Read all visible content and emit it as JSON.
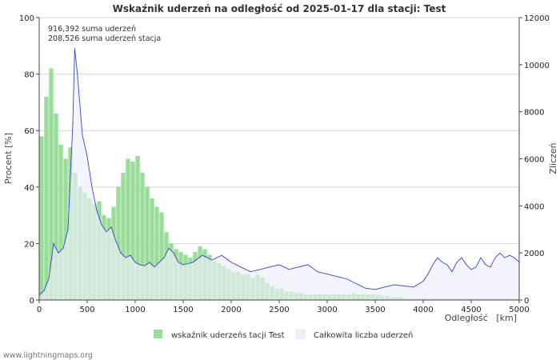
{
  "chart_data": {
    "type": "bar+area",
    "title": "Wskaźnik uderzeń na odległość od 2025-01-17 dla stacji: Test",
    "xlabel": "Odległość   [km]",
    "ylabel_left": "Procent   [%]",
    "ylabel_right": "Zliczeń",
    "xlim": [
      0,
      5000
    ],
    "ylim_left": [
      0,
      100
    ],
    "ylim_right": [
      0,
      12000
    ],
    "x_ticks": [
      "0",
      "500",
      "1000",
      "1500",
      "2000",
      "2500",
      "3000",
      "3500",
      "4000",
      "4500",
      "5000"
    ],
    "y_left_ticks": [
      "0",
      "20",
      "40",
      "60",
      "80",
      "100"
    ],
    "y_right_ticks": [
      "0",
      "2000",
      "4000",
      "6000",
      "8000",
      "10000",
      "12000"
    ],
    "annotations": [
      "916,392 suma uderzeń",
      "208,526 suma uderzeń stacja"
    ],
    "legend": [
      "wskaźnik uderzeńs tacji Test",
      "Całkowita liczba uderzeń"
    ],
    "series": [
      {
        "name": "wskaźnik uderzeńs tacji Test",
        "kind": "bar",
        "axis": "left",
        "color": "#99dd99",
        "x": [
          0,
          50,
          100,
          150,
          200,
          250,
          300,
          350,
          400,
          450,
          500,
          550,
          600,
          650,
          700,
          750,
          800,
          850,
          900,
          950,
          1000,
          1050,
          1100,
          1150,
          1200,
          1250,
          1300,
          1350,
          1400,
          1450,
          1500,
          1550,
          1600,
          1650,
          1700,
          1750,
          1800,
          1850,
          1900,
          1950,
          2000,
          2050,
          2100,
          2150,
          2200,
          2250,
          2300,
          2350,
          2400,
          2450,
          2500,
          2550,
          2600,
          2650,
          2700,
          2750,
          2800,
          2850,
          2900,
          2950,
          3000,
          3050,
          3100,
          3150,
          3200,
          3250,
          3300,
          3350,
          3400,
          3450,
          3500,
          3550,
          3600,
          3650,
          3700,
          3750,
          3800,
          3850,
          3900,
          3950,
          4000,
          4050,
          4100,
          4150,
          4200,
          4250,
          4300,
          4350,
          4400,
          4450,
          4500,
          4550,
          4600,
          4650,
          4700,
          4750,
          4800,
          4850,
          4900,
          4950
        ],
        "values": [
          58,
          72,
          82,
          66,
          55,
          50,
          54,
          45,
          40,
          38,
          36,
          34,
          35,
          30,
          29,
          33,
          40,
          45,
          50,
          49,
          51,
          45,
          40,
          36,
          33,
          31,
          24,
          20,
          18,
          17,
          16,
          15,
          17,
          19,
          18,
          16,
          14,
          13,
          12,
          11,
          10,
          10,
          9,
          9,
          8,
          9,
          8,
          6,
          5,
          4,
          4,
          3,
          3,
          2.5,
          2.5,
          2,
          2,
          2,
          2,
          2,
          2,
          2,
          2,
          2,
          2,
          2.5,
          2,
          2,
          2,
          2,
          2,
          1.5,
          1.5,
          1,
          1,
          1,
          0.5,
          0.5,
          0.5,
          0.5,
          0.5,
          0.5,
          0.5,
          0.5,
          0.5,
          0.5,
          0.5,
          0.5,
          0.5,
          0.5,
          0.5,
          0.5,
          0.5,
          0.5,
          0.5,
          0.5,
          0.5,
          0.5,
          0.5,
          0.5
        ]
      },
      {
        "name": "Całkowita liczba uderzeń",
        "kind": "area",
        "axis": "right",
        "color": "#3344cc",
        "fill": "#eeeefa",
        "x": [
          0,
          50,
          100,
          150,
          200,
          250,
          300,
          350,
          370,
          400,
          450,
          500,
          550,
          600,
          650,
          700,
          750,
          800,
          850,
          900,
          950,
          1000,
          1050,
          1100,
          1150,
          1200,
          1250,
          1300,
          1350,
          1400,
          1450,
          1500,
          1600,
          1700,
          1800,
          1900,
          2000,
          2100,
          2200,
          2300,
          2400,
          2500,
          2600,
          2700,
          2800,
          2900,
          3000,
          3100,
          3200,
          3300,
          3400,
          3500,
          3600,
          3700,
          3800,
          3900,
          4000,
          4050,
          4100,
          4150,
          4200,
          4250,
          4300,
          4350,
          4400,
          4450,
          4500,
          4550,
          4600,
          4650,
          4700,
          4750,
          4800,
          4850,
          4900,
          4950,
          5000
        ],
        "values": [
          200,
          400,
          900,
          2400,
          2000,
          2200,
          3000,
          7500,
          10700,
          9500,
          7000,
          6100,
          4800,
          3800,
          3200,
          2900,
          3100,
          2500,
          2000,
          1800,
          1900,
          1600,
          1500,
          1450,
          1600,
          1400,
          1600,
          1800,
          2200,
          2000,
          1600,
          1500,
          1600,
          1900,
          1700,
          1900,
          1600,
          1400,
          1200,
          1300,
          1400,
          1500,
          1300,
          1400,
          1500,
          1200,
          1100,
          1000,
          900,
          700,
          500,
          450,
          550,
          650,
          600,
          550,
          800,
          1100,
          1500,
          1800,
          1600,
          1500,
          1200,
          1600,
          1800,
          1500,
          1300,
          1400,
          1800,
          1500,
          1400,
          1800,
          2000,
          1800,
          1900,
          1800,
          1600
        ]
      }
    ]
  },
  "watermark": "www.lightningmaps.org"
}
